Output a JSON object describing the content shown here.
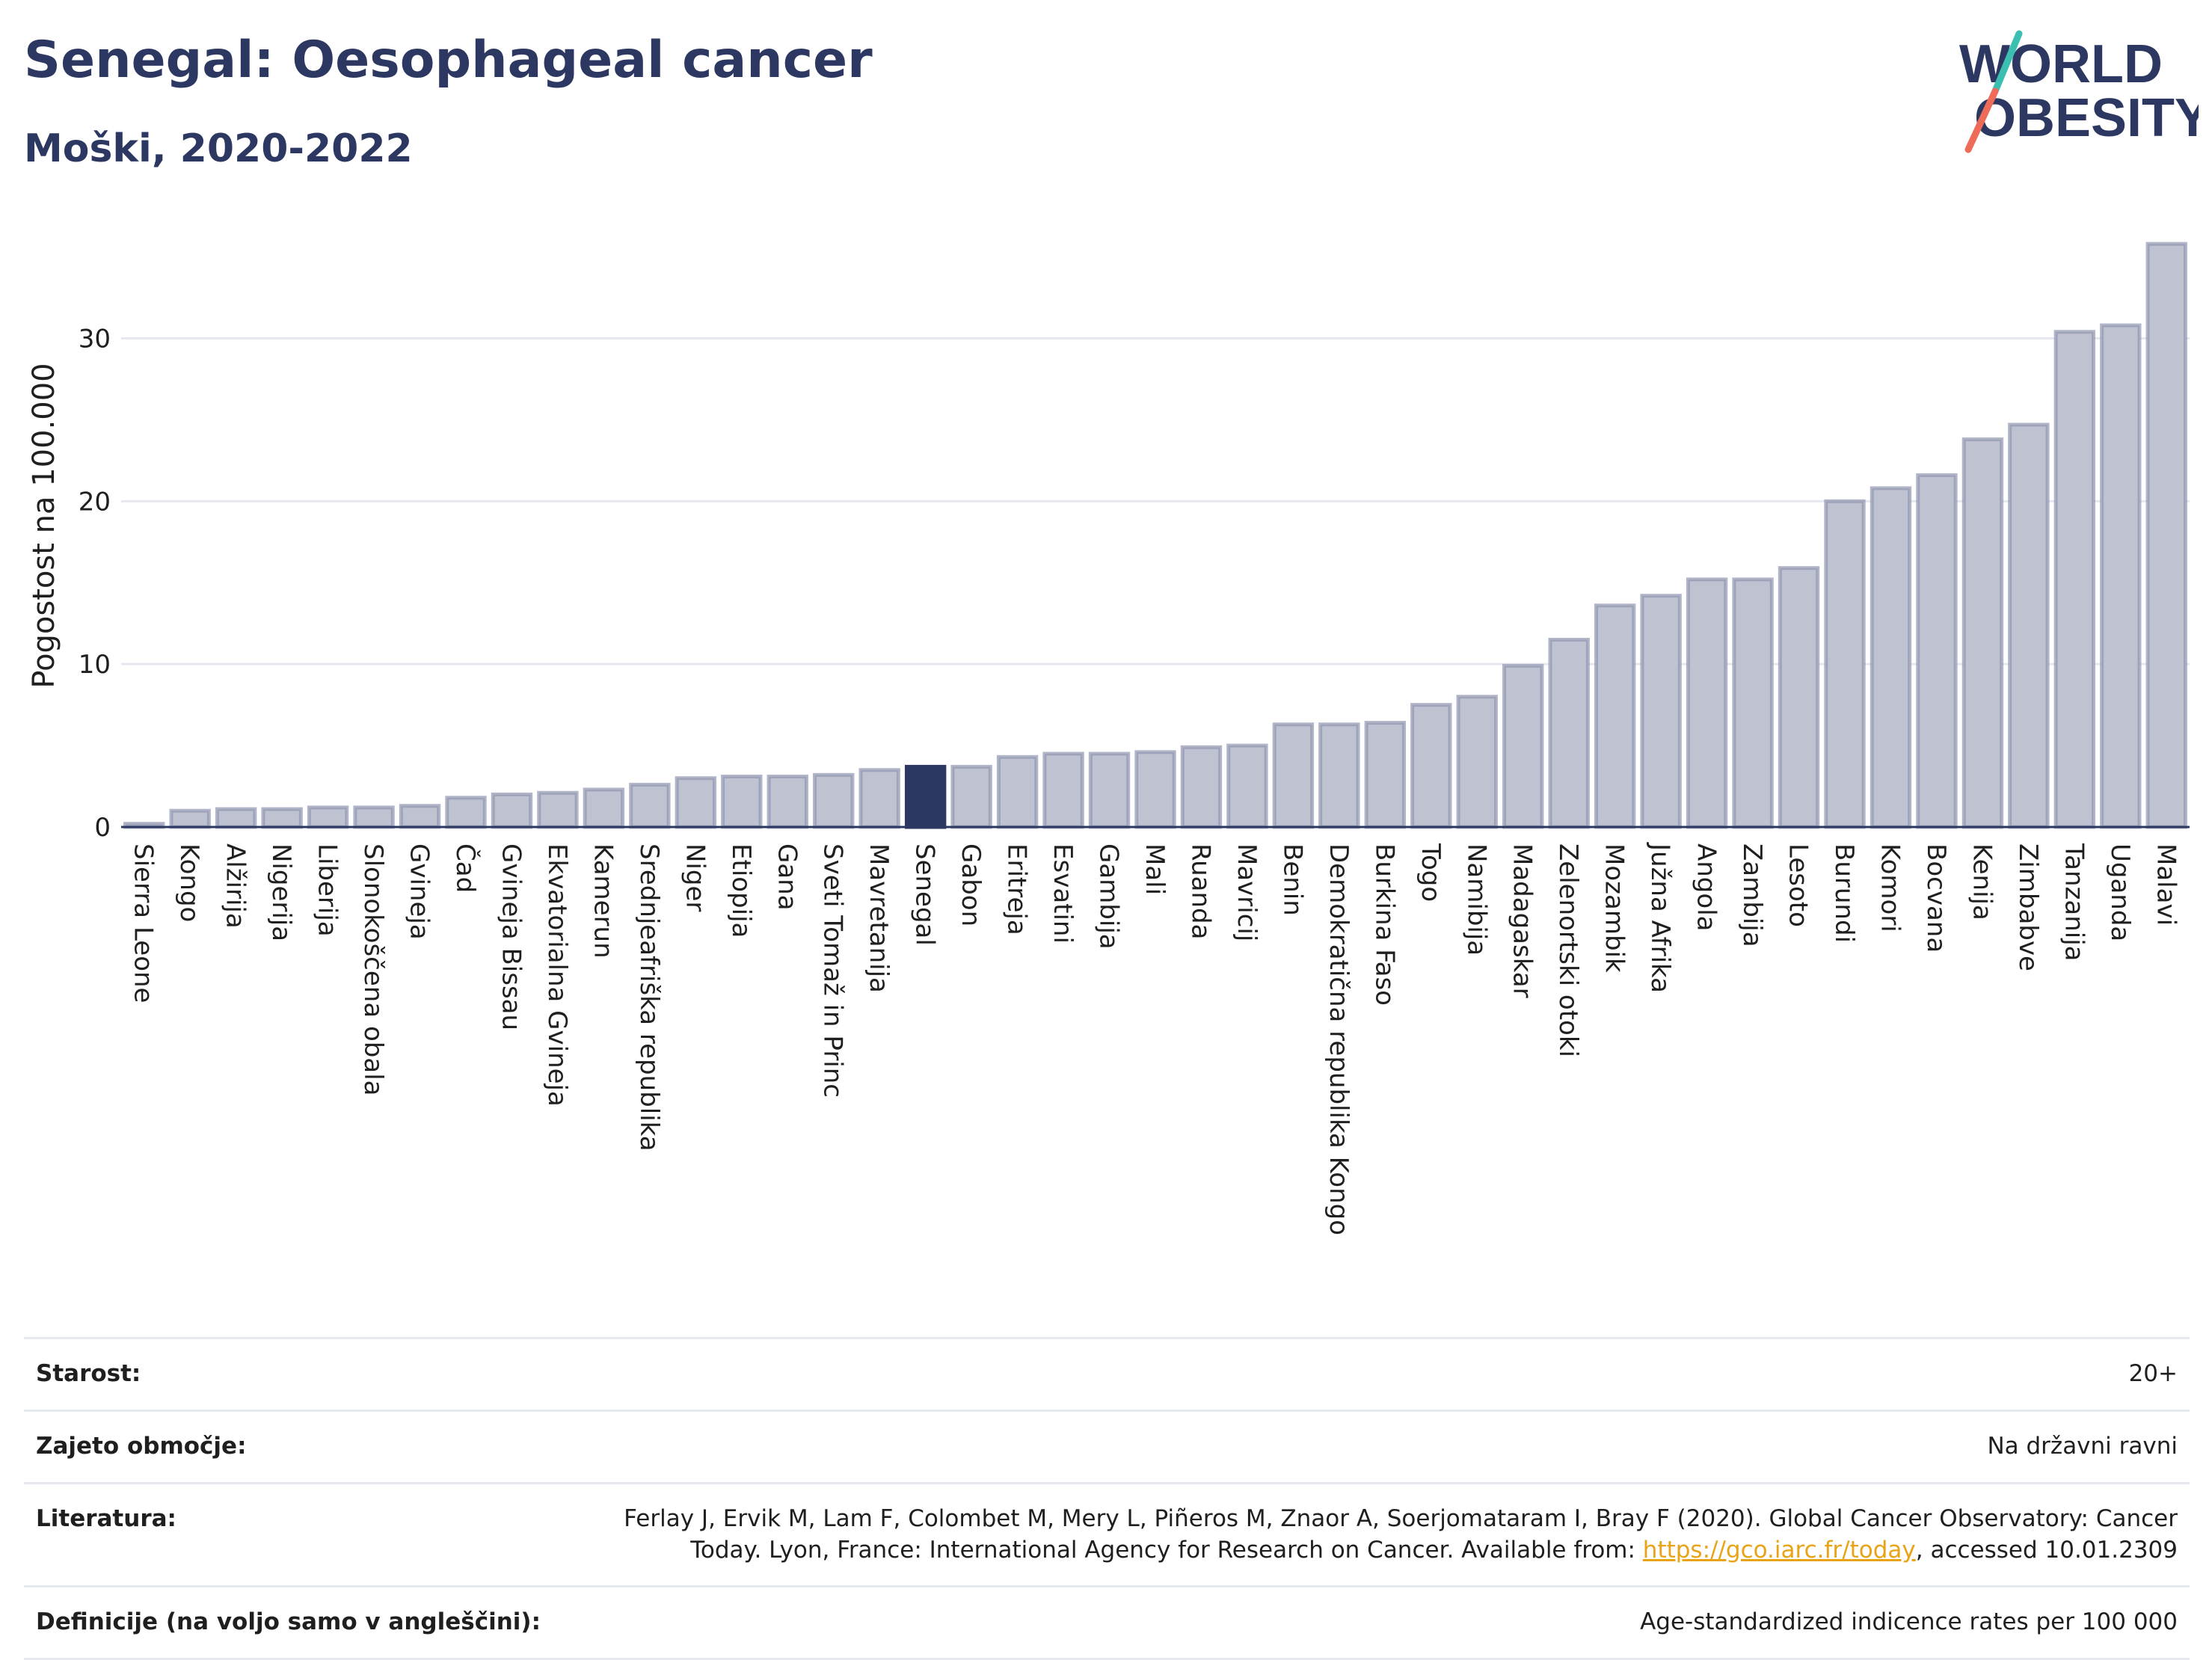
{
  "header": {
    "title": "Senegal: Oesophageal cancer",
    "subtitle": "Moški, 2020-2022",
    "logo_line1": "WORLD",
    "logo_line2": "OBESITY"
  },
  "colors": {
    "bar": "#bfc3d1",
    "bar_stroke": "#9096b0",
    "highlight": "#2c3862",
    "title": "#2c3862",
    "grid": "#e6e8ef",
    "link": "#e8a317"
  },
  "chart_data": {
    "type": "bar",
    "title": "Senegal: Oesophageal cancer",
    "subtitle": "Moški, 2020-2022",
    "ylabel": "Pogostost na 100.000",
    "xlabel": "",
    "ylim": [
      0,
      37
    ],
    "yticks": [
      0,
      10,
      20,
      30
    ],
    "grid": true,
    "highlight": "Senegal",
    "categories": [
      "Sierra Leone",
      "Kongo",
      "Alžirija",
      "Nigerija",
      "Liberija",
      "Slonokoščena obala",
      "Gvineja",
      "Čad",
      "Gvineja Bissau",
      "Ekvatorialna Gvineja",
      "Kamerun",
      "Srednjeafriška republika",
      "Niger",
      "Etiopija",
      "Gana",
      "Sveti Tomaž in Princ",
      "Mavretanija",
      "Senegal",
      "Gabon",
      "Eritreja",
      "Esvatini",
      "Gambija",
      "Mali",
      "Ruanda",
      "Mavricij",
      "Benin",
      "Demokratična republika Kongo",
      "Burkina Faso",
      "Togo",
      "Namibija",
      "Madagaskar",
      "Zelenortski otoki",
      "Mozambik",
      "Južna Afrika",
      "Angola",
      "Zambija",
      "Lesoto",
      "Burundi",
      "Komori",
      "Bocvana",
      "Kenija",
      "Zimbabve",
      "Tanzanija",
      "Uganda",
      "Malavi"
    ],
    "values": [
      0.2,
      1.0,
      1.1,
      1.1,
      1.2,
      1.2,
      1.3,
      1.8,
      2.0,
      2.1,
      2.3,
      2.6,
      3.0,
      3.1,
      3.1,
      3.2,
      3.5,
      3.7,
      3.7,
      4.3,
      4.5,
      4.5,
      4.6,
      4.9,
      5.0,
      6.3,
      6.3,
      6.4,
      7.5,
      8.0,
      9.9,
      11.5,
      13.6,
      14.2,
      15.2,
      15.2,
      15.9,
      20.0,
      20.8,
      21.6,
      23.8,
      24.7,
      30.4,
      30.8,
      35.8
    ]
  },
  "info": {
    "age_label": "Starost:",
    "age_value": "20+",
    "coverage_label": "Zajeto območje:",
    "coverage_value": "Na državni ravni",
    "literature_label": "Literatura:",
    "literature_text_1": "Ferlay J, Ervik M, Lam F, Colombet M, Mery L, Piñeros M, Znaor A, Soerjomataram I, Bray F (2020). Global Cancer Observatory: Cancer Today. Lyon, France: International Agency for Research on Cancer. Available from: ",
    "literature_link": "https://gco.iarc.fr/today",
    "literature_text_2": ", accessed 10.01.2309",
    "definitions_label": "Definicije (na voljo samo v angleščini):",
    "definitions_value": "Age-standardized indicence rates per 100 000"
  }
}
